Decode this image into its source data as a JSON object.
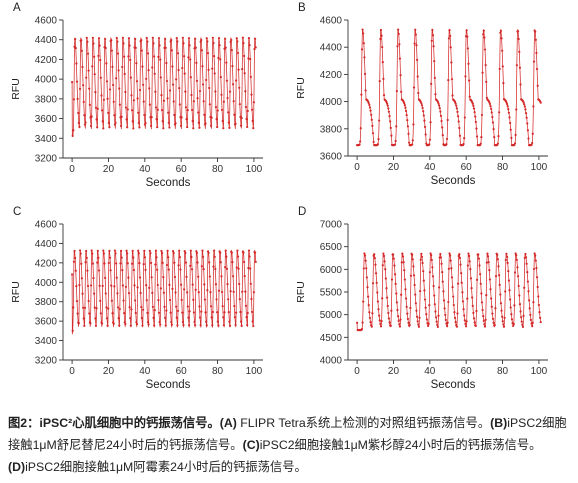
{
  "figure": {
    "caption": {
      "label": "图2：iPSC²心肌细胞中的钙振荡信号。",
      "a_tag": "(A)",
      "a_text": " FLIPR Tetra系统上检测的对照组钙振荡信号。",
      "b_tag": "(B)",
      "b_text": "iPSC2细胞接触1μM舒尼替尼24小时后的钙振荡信号。",
      "c_tag": "(C)",
      "c_text": "iPSC2细胞接触1μM紫杉醇24小时后的钙振荡信号。",
      "d_tag": "(D)",
      "d_text": "iPSC2细胞接触1μM阿霉素24小时后的钙振荡信号。"
    }
  },
  "colors": {
    "trace": "#d42a2a",
    "axis": "#333333"
  },
  "chart_data": [
    {
      "panel": "A",
      "type": "line",
      "xlabel": "Seconds",
      "ylabel": "RFU",
      "xlim": [
        -5,
        105
      ],
      "ylim": [
        3200,
        4600
      ],
      "xticks": [
        0,
        20,
        40,
        60,
        80,
        100
      ],
      "yticks": [
        3200,
        3400,
        3600,
        3800,
        4000,
        4200,
        4400,
        4600
      ],
      "series": [
        {
          "pattern": "calcium-oscillation",
          "t_start": 0,
          "t_end": 101,
          "baseline": 3420,
          "peak": 4420,
          "first_point": 3970,
          "peak_times": [
            1.5,
            4.8,
            8.1,
            11.4,
            14.7,
            18.0,
            21.3,
            24.6,
            27.9,
            31.2,
            34.5,
            37.8,
            41.1,
            44.4,
            47.7,
            51.0,
            54.3,
            57.6,
            60.9,
            64.2,
            67.5,
            70.8,
            74.1,
            77.4,
            80.7,
            84.0,
            87.3,
            90.6,
            93.9,
            97.2,
            100.5
          ],
          "rise": 0.35,
          "decay": 1.1
        }
      ]
    },
    {
      "panel": "B",
      "type": "line",
      "xlabel": "Seconds",
      "ylabel": "RFU",
      "xlim": [
        -5,
        105
      ],
      "ylim": [
        3600,
        4600
      ],
      "xticks": [
        0,
        20,
        40,
        60,
        80,
        100
      ],
      "yticks": [
        3600,
        3800,
        4000,
        4200,
        4400,
        4600
      ],
      "series": [
        {
          "pattern": "calcium-oscillation",
          "t_start": 0,
          "t_end": 101,
          "baseline": 3680,
          "peak": 4530,
          "first_point": 3680,
          "peak_times": [
            3.0,
            13.0,
            22.5,
            31.9,
            41.3,
            50.7,
            60.1,
            69.5,
            78.9,
            88.3,
            97.7
          ],
          "plateau": 4020,
          "rise": 0.5,
          "decay": 1.4
        }
      ]
    },
    {
      "panel": "C",
      "type": "line",
      "xlabel": "Seconds",
      "ylabel": "RFU",
      "xlim": [
        -5,
        105
      ],
      "ylim": [
        3200,
        4600
      ],
      "xticks": [
        0,
        20,
        40,
        60,
        80,
        100
      ],
      "yticks": [
        3200,
        3400,
        3600,
        3800,
        4000,
        4200,
        4400,
        4600
      ],
      "series": [
        {
          "pattern": "calcium-oscillation",
          "t_start": 0,
          "t_end": 101,
          "baseline": 3460,
          "peak": 4330,
          "first_point": 4080,
          "peak_times": [
            1.2,
            4.4,
            7.6,
            10.8,
            14.0,
            17.2,
            20.4,
            23.6,
            26.8,
            30.0,
            33.2,
            36.4,
            39.6,
            42.8,
            46.0,
            49.2,
            52.4,
            55.6,
            58.8,
            62.0,
            65.2,
            68.4,
            71.6,
            74.8,
            78.0,
            81.2,
            84.4,
            87.6,
            90.8,
            94.0,
            97.2,
            100.4
          ],
          "rise": 0.35,
          "decay": 1.1
        }
      ]
    },
    {
      "panel": "D",
      "type": "line",
      "xlabel": "Seconds",
      "ylabel": "RFU",
      "xlim": [
        -5,
        105
      ],
      "ylim": [
        4000,
        7000
      ],
      "xticks": [
        0,
        20,
        40,
        60,
        80,
        100
      ],
      "yticks": [
        4000,
        4500,
        5000,
        5500,
        6000,
        6500,
        7000
      ],
      "series": [
        {
          "pattern": "calcium-oscillation",
          "t_start": 0,
          "t_end": 101,
          "baseline": 4660,
          "peak": 6350,
          "first_point": 4820,
          "peak_times": [
            4.0,
            9.2,
            14.4,
            19.6,
            24.8,
            30.0,
            35.2,
            40.4,
            45.6,
            50.8,
            56.0,
            61.2,
            66.4,
            71.6,
            76.8,
            82.0,
            87.2,
            92.4,
            97.6
          ],
          "rise": 0.45,
          "decay": 1.6
        }
      ]
    }
  ]
}
